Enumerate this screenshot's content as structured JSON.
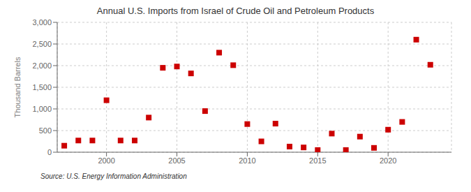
{
  "chart_data": {
    "type": "scatter",
    "title": "Annual U.S. Imports from Israel of Crude Oil and Petroleum Products",
    "y_label": "Thousand Barrels",
    "annotation": "Source: U.S. Energy Information Administration",
    "x": [
      1997,
      1998,
      1999,
      2000,
      2001,
      2002,
      2003,
      2004,
      2005,
      2006,
      2007,
      2008,
      2009,
      2010,
      2011,
      2012,
      2013,
      2014,
      2015,
      2016,
      2017,
      2018,
      2019,
      2020,
      2021,
      2022,
      2023
    ],
    "values": [
      150,
      270,
      270,
      1200,
      270,
      270,
      800,
      1950,
      1980,
      1820,
      950,
      2300,
      2010,
      650,
      250,
      660,
      130,
      110,
      50,
      430,
      50,
      360,
      100,
      520,
      700,
      2600,
      2020
    ],
    "color": "#cc0000",
    "marker": "square",
    "xlim": [
      1996.5,
      2024.5
    ],
    "xticks": [
      2000,
      2005,
      2010,
      2015,
      2020
    ],
    "ylim": [
      0,
      3000
    ],
    "yticks": [
      0,
      500,
      {
        "value": 1000,
        "label": "1,000"
      },
      {
        "value": 1500,
        "label": "1,500"
      },
      {
        "value": 2000,
        "label": "2,000"
      },
      {
        "value": 2500,
        "label": "2,500"
      },
      {
        "value": 3000,
        "label": "3,000"
      }
    ],
    "grid": true
  }
}
